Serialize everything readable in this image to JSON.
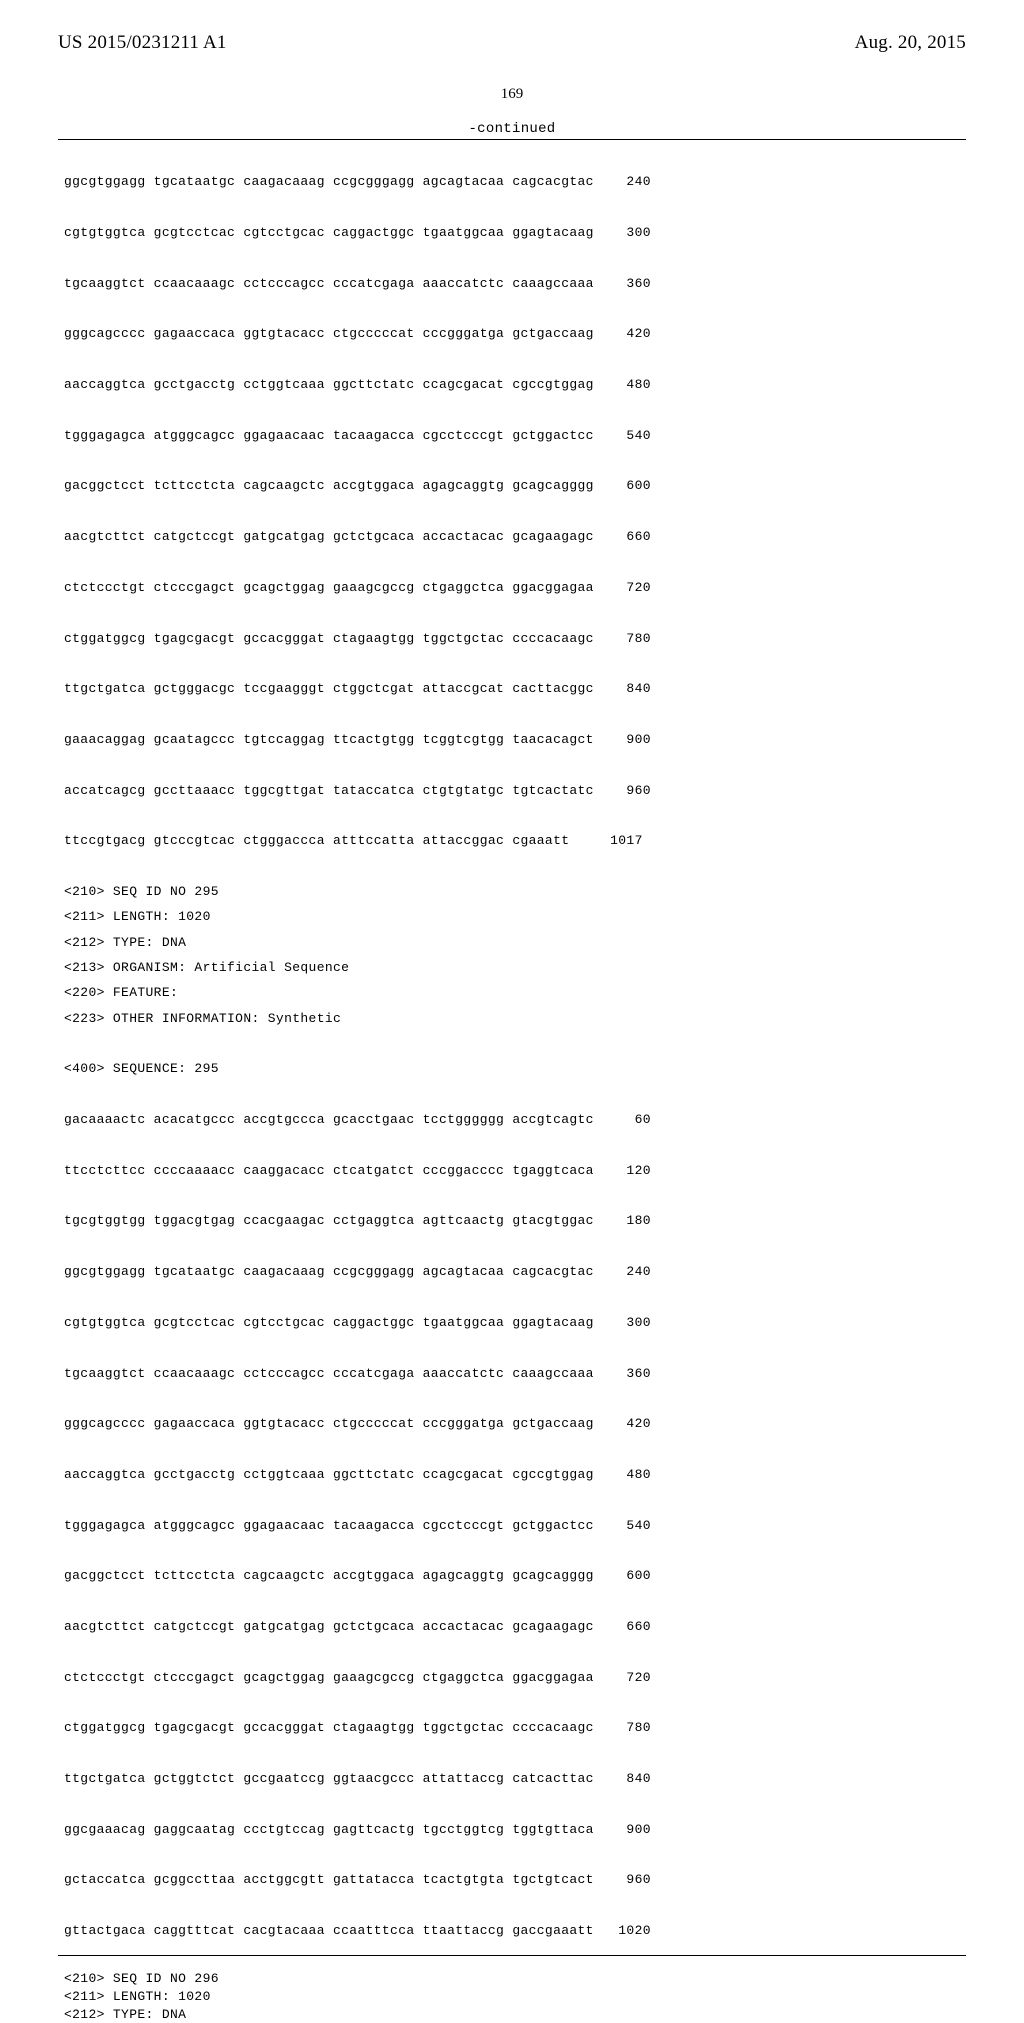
{
  "header": {
    "pub_no": "US 2015/0231211 A1",
    "pub_date": "Aug. 20, 2015"
  },
  "page_number": "169",
  "continued_label": "-continued",
  "seq1": [
    {
      "t": "ggcgtggagg tgcataatgc caagacaaag ccgcgggagg agcagtacaa cagcacgtac",
      "n": "240"
    },
    {
      "t": "cgtgtggtca gcgtcctcac cgtcctgcac caggactggc tgaatggcaa ggagtacaag",
      "n": "300"
    },
    {
      "t": "tgcaaggtct ccaacaaagc cctcccagcc cccatcgaga aaaccatctc caaagccaaa",
      "n": "360"
    },
    {
      "t": "gggcagcccc gagaaccaca ggtgtacacc ctgcccccat cccgggatga gctgaccaag",
      "n": "420"
    },
    {
      "t": "aaccaggtca gcctgacctg cctggtcaaa ggcttctatc ccagcgacat cgccgtggag",
      "n": "480"
    },
    {
      "t": "tgggagagca atgggcagcc ggagaacaac tacaagacca cgcctcccgt gctggactcc",
      "n": "540"
    },
    {
      "t": "gacggctcct tcttcctcta cagcaagctc accgtggaca agagcaggtg gcagcagggg",
      "n": "600"
    },
    {
      "t": "aacgtcttct catgctccgt gatgcatgag gctctgcaca accactacac gcagaagagc",
      "n": "660"
    },
    {
      "t": "ctctccctgt ctcccgagct gcagctggag gaaagcgccg ctgaggctca ggacggagaa",
      "n": "720"
    },
    {
      "t": "ctggatggcg tgagcgacgt gccacgggat ctagaagtgg tggctgctac ccccacaagc",
      "n": "780"
    },
    {
      "t": "ttgctgatca gctgggacgc tccgaagggt ctggctcgat attaccgcat cacttacggc",
      "n": "840"
    },
    {
      "t": "gaaacaggag gcaatagccc tgtccaggag ttcactgtgg tcggtcgtgg taacacagct",
      "n": "900"
    },
    {
      "t": "accatcagcg gccttaaacc tggcgttgat tataccatca ctgtgtatgc tgtcactatc",
      "n": "960"
    },
    {
      "t": "ttccgtgacg gtcccgtcac ctgggaccca atttccatta attaccggac cgaaatt",
      "n": "1017"
    }
  ],
  "meta1": [
    "<210> SEQ ID NO 295",
    "<211> LENGTH: 1020",
    "<212> TYPE: DNA",
    "<213> ORGANISM: Artificial Sequence",
    "<220> FEATURE:",
    "<223> OTHER INFORMATION: Synthetic"
  ],
  "seq_header": "<400> SEQUENCE: 295",
  "seq2": [
    {
      "t": "gacaaaactc acacatgccc accgtgccca gcacctgaac tcctgggggg accgtcagtc",
      "n": "60"
    },
    {
      "t": "ttcctcttcc ccccaaaacc caaggacacc ctcatgatct cccggacccc tgaggtcaca",
      "n": "120"
    },
    {
      "t": "tgcgtggtgg tggacgtgag ccacgaagac cctgaggtca agttcaactg gtacgtggac",
      "n": "180"
    },
    {
      "t": "ggcgtggagg tgcataatgc caagacaaag ccgcgggagg agcagtacaa cagcacgtac",
      "n": "240"
    },
    {
      "t": "cgtgtggtca gcgtcctcac cgtcctgcac caggactggc tgaatggcaa ggagtacaag",
      "n": "300"
    },
    {
      "t": "tgcaaggtct ccaacaaagc cctcccagcc cccatcgaga aaaccatctc caaagccaaa",
      "n": "360"
    },
    {
      "t": "gggcagcccc gagaaccaca ggtgtacacc ctgcccccat cccgggatga gctgaccaag",
      "n": "420"
    },
    {
      "t": "aaccaggtca gcctgacctg cctggtcaaa ggcttctatc ccagcgacat cgccgtggag",
      "n": "480"
    },
    {
      "t": "tgggagagca atgggcagcc ggagaacaac tacaagacca cgcctcccgt gctggactcc",
      "n": "540"
    },
    {
      "t": "gacggctcct tcttcctcta cagcaagctc accgtggaca agagcaggtg gcagcagggg",
      "n": "600"
    },
    {
      "t": "aacgtcttct catgctccgt gatgcatgag gctctgcaca accactacac gcagaagagc",
      "n": "660"
    },
    {
      "t": "ctctccctgt ctcccgagct gcagctggag gaaagcgccg ctgaggctca ggacggagaa",
      "n": "720"
    },
    {
      "t": "ctggatggcg tgagcgacgt gccacgggat ctagaagtgg tggctgctac ccccacaagc",
      "n": "780"
    },
    {
      "t": "ttgctgatca gctggtctct gccgaatccg ggtaacgccc attattaccg catcacttac",
      "n": "840"
    },
    {
      "t": "ggcgaaacag gaggcaatag ccctgtccag gagttcactg tgcctggtcg tggtgttaca",
      "n": "900"
    },
    {
      "t": "gctaccatca gcggccttaa acctggcgtt gattatacca tcactgtgta tgctgtcact",
      "n": "960"
    },
    {
      "t": "gttactgaca caggtttcat cacgtacaaa ccaatttcca ttaattaccg gaccgaaatt",
      "n": "1020"
    }
  ],
  "meta2": [
    "<210> SEQ ID NO 296",
    "<211> LENGTH: 1020",
    "<212> TYPE: DNA"
  ]
}
